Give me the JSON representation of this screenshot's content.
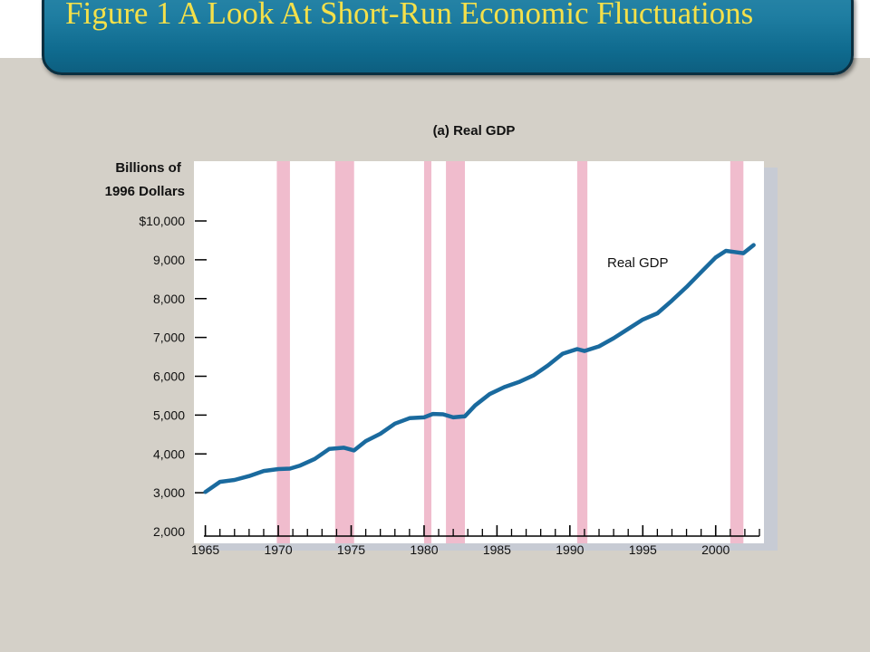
{
  "slide": {
    "title": "Figure 1 A Look At Short-Run Economic Fluctuations"
  },
  "colors": {
    "banner": "#1f7ea2",
    "title_text": "#f4e04a",
    "background": "#d4d0c8",
    "line": "#1a6a9e",
    "recession": "#f0bccd"
  },
  "chart_data": {
    "type": "line",
    "title": "(a) Real GDP",
    "ylabel": "Billions of 1996 Dollars",
    "ylim": [
      2000,
      10500
    ],
    "xlim": [
      1964.9,
      2003.0
    ],
    "xticks": [
      1965,
      1970,
      1975,
      1980,
      1985,
      1990,
      1995,
      2000
    ],
    "xtick_labels": [
      "1965",
      "1970",
      "1975",
      "1980",
      "1985",
      "1990",
      "1995",
      "2000"
    ],
    "yticks": [
      2000,
      3000,
      4000,
      5000,
      6000,
      7000,
      8000,
      9000,
      10000
    ],
    "ytick_labels": [
      "2,000",
      "3,000",
      "4,000",
      "5,000",
      "6,000",
      "7,000",
      "8,000",
      "9,000",
      "$10,000"
    ],
    "series": [
      {
        "name": "Real GDP",
        "x": [
          1965.0,
          1966.0,
          1967.0,
          1968.0,
          1969.0,
          1970.0,
          1970.8,
          1971.5,
          1972.5,
          1973.5,
          1974.5,
          1975.2,
          1976.0,
          1977.0,
          1978.0,
          1979.0,
          1980.0,
          1980.6,
          1981.3,
          1982.0,
          1982.8,
          1983.5,
          1984.5,
          1985.5,
          1986.5,
          1987.5,
          1988.5,
          1989.5,
          1990.5,
          1991.0,
          1992.0,
          1993.0,
          1994.0,
          1995.0,
          1996.0,
          1997.0,
          1998.0,
          1999.0,
          2000.0,
          2000.7,
          2001.3,
          2001.9,
          2002.6
        ],
        "values": [
          3020,
          3280,
          3330,
          3430,
          3560,
          3610,
          3620,
          3700,
          3870,
          4130,
          4160,
          4090,
          4330,
          4520,
          4780,
          4920,
          4940,
          5030,
          5020,
          4940,
          4970,
          5250,
          5540,
          5720,
          5850,
          6020,
          6280,
          6580,
          6700,
          6650,
          6770,
          6980,
          7220,
          7460,
          7620,
          7950,
          8300,
          8680,
          9060,
          9230,
          9200,
          9170,
          9380
        ]
      }
    ],
    "recessions": [
      [
        1969.9,
        1970.8
      ],
      [
        1973.9,
        1975.2
      ],
      [
        1980.0,
        1980.5
      ],
      [
        1981.5,
        1982.8
      ],
      [
        1990.5,
        1991.2
      ],
      [
        2001.0,
        2001.9
      ]
    ],
    "annotations": [
      {
        "text": "Real GDP"
      }
    ],
    "grid": false
  }
}
